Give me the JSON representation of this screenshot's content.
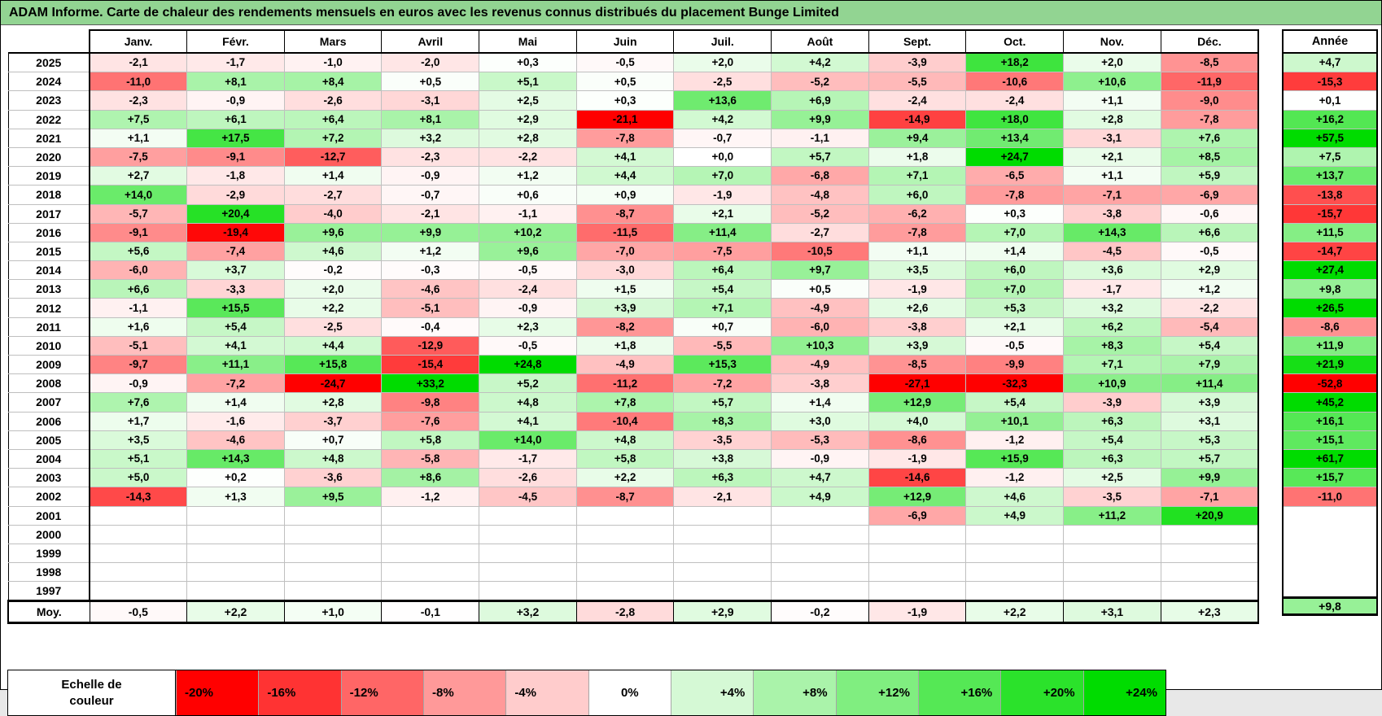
{
  "title": "ADAM Informe. Carte de chaleur des rendements mensuels en euros avec les revenus connus distribués du placement Bunge Limited",
  "colors": {
    "title_bg": "#92D492",
    "grid_line": "#BFBFBF",
    "border": "#000000"
  },
  "color_scale": {
    "negative_limit_pct": -20,
    "positive_limit_pct": 24,
    "negative_color": "#FF0000",
    "neutral_color": "#FFFFFF",
    "positive_color": "#00DC00"
  },
  "table": {
    "month_headers": [
      "Janv.",
      "Févr.",
      "Mars",
      "Avril",
      "Mai",
      "Juin",
      "Juil.",
      "Août",
      "Sept.",
      "Oct.",
      "Nov.",
      "Déc."
    ],
    "annual_header": "Année",
    "avg_label": "Moy.",
    "rows": [
      {
        "year": "2025",
        "months": [
          "-2,1",
          "-1,7",
          "-1,0",
          "-2,0",
          "+0,3",
          "-0,5",
          "+2,0",
          "+4,2",
          "-3,9",
          "+18,2",
          "+2,0",
          "-8,5"
        ],
        "annee": "+4,7"
      },
      {
        "year": "2024",
        "months": [
          "-11,0",
          "+8,1",
          "+8,4",
          "+0,5",
          "+5,1",
          "+0,5",
          "-2,5",
          "-5,2",
          "-5,5",
          "-10,6",
          "+10,6",
          "-11,9"
        ],
        "annee": "-15,3"
      },
      {
        "year": "2023",
        "months": [
          "-2,3",
          "-0,9",
          "-2,6",
          "-3,1",
          "+2,5",
          "+0,3",
          "+13,6",
          "+6,9",
          "-2,4",
          "-2,4",
          "+1,1",
          "-9,0"
        ],
        "annee": "+0,1"
      },
      {
        "year": "2022",
        "months": [
          "+7,5",
          "+6,1",
          "+6,4",
          "+8,1",
          "+2,9",
          "-21,1",
          "+4,2",
          "+9,9",
          "-14,9",
          "+18,0",
          "+2,8",
          "-7,8"
        ],
        "annee": "+16,2"
      },
      {
        "year": "2021",
        "months": [
          "+1,1",
          "+17,5",
          "+7,2",
          "+3,2",
          "+2,8",
          "-7,8",
          "-0,7",
          "-1,1",
          "+9,4",
          "+13,4",
          "-3,1",
          "+7,6"
        ],
        "annee": "+57,5"
      },
      {
        "year": "2020",
        "months": [
          "-7,5",
          "-9,1",
          "-12,7",
          "-2,3",
          "-2,2",
          "+4,1",
          "+0,0",
          "+5,7",
          "+1,8",
          "+24,7",
          "+2,1",
          "+8,5"
        ],
        "annee": "+7,5"
      },
      {
        "year": "2019",
        "months": [
          "+2,7",
          "-1,8",
          "+1,4",
          "-0,9",
          "+1,2",
          "+4,4",
          "+7,0",
          "-6,8",
          "+7,1",
          "-6,5",
          "+1,1",
          "+5,9"
        ],
        "annee": "+13,7"
      },
      {
        "year": "2018",
        "months": [
          "+14,0",
          "-2,9",
          "-2,7",
          "-0,7",
          "+0,6",
          "+0,9",
          "-1,9",
          "-4,8",
          "+6,0",
          "-7,8",
          "-7,1",
          "-6,9"
        ],
        "annee": "-13,8"
      },
      {
        "year": "2017",
        "months": [
          "-5,7",
          "+20,4",
          "-4,0",
          "-2,1",
          "-1,1",
          "-8,7",
          "+2,1",
          "-5,2",
          "-6,2",
          "+0,3",
          "-3,8",
          "-0,6"
        ],
        "annee": "-15,7"
      },
      {
        "year": "2016",
        "months": [
          "-9,1",
          "-19,4",
          "+9,6",
          "+9,9",
          "+10,2",
          "-11,5",
          "+11,4",
          "-2,7",
          "-7,8",
          "+7,0",
          "+14,3",
          "+6,6"
        ],
        "annee": "+11,5"
      },
      {
        "year": "2015",
        "months": [
          "+5,6",
          "-7,4",
          "+4,6",
          "+1,2",
          "+9,6",
          "-7,0",
          "-7,5",
          "-10,5",
          "+1,1",
          "+1,4",
          "-4,5",
          "-0,5"
        ],
        "annee": "-14,7"
      },
      {
        "year": "2014",
        "months": [
          "-6,0",
          "+3,7",
          "-0,2",
          "-0,3",
          "-0,5",
          "-3,0",
          "+6,4",
          "+9,7",
          "+3,5",
          "+6,0",
          "+3,6",
          "+2,9"
        ],
        "annee": "+27,4"
      },
      {
        "year": "2013",
        "months": [
          "+6,6",
          "-3,3",
          "+2,0",
          "-4,6",
          "-2,4",
          "+1,5",
          "+5,4",
          "+0,5",
          "-1,9",
          "+7,0",
          "-1,7",
          "+1,2"
        ],
        "annee": "+9,8"
      },
      {
        "year": "2012",
        "months": [
          "-1,1",
          "+15,5",
          "+2,2",
          "-5,1",
          "-0,9",
          "+3,9",
          "+7,1",
          "-4,9",
          "+2,6",
          "+5,3",
          "+3,2",
          "-2,2"
        ],
        "annee": "+26,5"
      },
      {
        "year": "2011",
        "months": [
          "+1,6",
          "+5,4",
          "-2,5",
          "-0,4",
          "+2,3",
          "-8,2",
          "+0,7",
          "-6,0",
          "-3,8",
          "+2,1",
          "+6,2",
          "-5,4"
        ],
        "annee": "-8,6"
      },
      {
        "year": "2010",
        "months": [
          "-5,1",
          "+4,1",
          "+4,4",
          "-12,9",
          "-0,5",
          "+1,8",
          "-5,5",
          "+10,3",
          "+3,9",
          "-0,5",
          "+8,3",
          "+5,4"
        ],
        "annee": "+11,9"
      },
      {
        "year": "2009",
        "months": [
          "-9,7",
          "+11,1",
          "+15,8",
          "-15,4",
          "+24,8",
          "-4,9",
          "+15,3",
          "-4,9",
          "-8,5",
          "-9,9",
          "+7,1",
          "+7,9"
        ],
        "annee": "+21,9"
      },
      {
        "year": "2008",
        "months": [
          "-0,9",
          "-7,2",
          "-24,7",
          "+33,2",
          "+5,2",
          "-11,2",
          "-7,2",
          "-3,8",
          "-27,1",
          "-32,3",
          "+10,9",
          "+11,4"
        ],
        "annee": "-52,8"
      },
      {
        "year": "2007",
        "months": [
          "+7,6",
          "+1,4",
          "+2,8",
          "-9,8",
          "+4,8",
          "+7,8",
          "+5,7",
          "+1,4",
          "+12,9",
          "+5,4",
          "-3,9",
          "+3,9"
        ],
        "annee": "+45,2"
      },
      {
        "year": "2006",
        "months": [
          "+1,7",
          "-1,6",
          "-3,7",
          "-7,6",
          "+4,1",
          "-10,4",
          "+8,3",
          "+3,0",
          "+4,0",
          "+10,1",
          "+6,3",
          "+3,1"
        ],
        "annee": "+16,1"
      },
      {
        "year": "2005",
        "months": [
          "+3,5",
          "-4,6",
          "+0,7",
          "+5,8",
          "+14,0",
          "+4,8",
          "-3,5",
          "-5,3",
          "-8,6",
          "-1,2",
          "+5,4",
          "+5,3"
        ],
        "annee": "+15,1"
      },
      {
        "year": "2004",
        "months": [
          "+5,1",
          "+14,3",
          "+4,8",
          "-5,8",
          "-1,7",
          "+5,8",
          "+3,8",
          "-0,9",
          "-1,9",
          "+15,9",
          "+6,3",
          "+5,7"
        ],
        "annee": "+61,7"
      },
      {
        "year": "2003",
        "months": [
          "+5,0",
          "+0,2",
          "-3,6",
          "+8,6",
          "-2,6",
          "+2,2",
          "+6,3",
          "+4,7",
          "-14,6",
          "-1,2",
          "+2,5",
          "+9,9"
        ],
        "annee": "+15,7"
      },
      {
        "year": "2002",
        "months": [
          "-14,3",
          "+1,3",
          "+9,5",
          "-1,2",
          "-4,5",
          "-8,7",
          "-2,1",
          "+4,9",
          "+12,9",
          "+4,6",
          "-3,5",
          "-7,1"
        ],
        "annee": "-11,0"
      },
      {
        "year": "2001",
        "months": [
          "",
          "",
          "",
          "",
          "",
          "",
          "",
          "",
          "-6,9",
          "+4,9",
          "+11,2",
          "+20,9"
        ],
        "annee": ""
      },
      {
        "year": "2000",
        "months": [
          "",
          "",
          "",
          "",
          "",
          "",
          "",
          "",
          "",
          "",
          "",
          ""
        ],
        "annee": ""
      },
      {
        "year": "1999",
        "months": [
          "",
          "",
          "",
          "",
          "",
          "",
          "",
          "",
          "",
          "",
          "",
          ""
        ],
        "annee": ""
      },
      {
        "year": "1998",
        "months": [
          "",
          "",
          "",
          "",
          "",
          "",
          "",
          "",
          "",
          "",
          "",
          ""
        ],
        "annee": ""
      },
      {
        "year": "1997",
        "months": [
          "",
          "",
          "",
          "",
          "",
          "",
          "",
          "",
          "",
          "",
          "",
          ""
        ],
        "annee": ""
      }
    ],
    "avg_row": {
      "months": [
        "-0,5",
        "+2,2",
        "+1,0",
        "-0,1",
        "+3,2",
        "-2,8",
        "+2,9",
        "-0,2",
        "-1,9",
        "+2,2",
        "+3,1",
        "+2,3"
      ],
      "annee": "+9,8"
    }
  },
  "legend": {
    "label": "Echelle de couleur",
    "stops": [
      "-20%",
      "-16%",
      "-12%",
      "-8%",
      "-4%",
      "0%",
      "+4%",
      "+8%",
      "+12%",
      "+16%",
      "+20%",
      "+24%"
    ]
  },
  "chart_data": {
    "type": "heatmap",
    "title": "ADAM Informe. Carte de chaleur des rendements mensuels en euros avec les revenus connus distribués du placement Bunge Limited",
    "unit": "%",
    "x_labels": [
      "Janv.",
      "Févr.",
      "Mars",
      "Avril",
      "Mai",
      "Juin",
      "Juil.",
      "Août",
      "Sept.",
      "Oct.",
      "Nov.",
      "Déc."
    ],
    "annual_column_label": "Année",
    "rows": [
      {
        "year": 2025,
        "values": [
          -2.1,
          -1.7,
          -1.0,
          -2.0,
          0.3,
          -0.5,
          2.0,
          4.2,
          -3.9,
          18.2,
          2.0,
          -8.5
        ],
        "annual": 4.7
      },
      {
        "year": 2024,
        "values": [
          -11.0,
          8.1,
          8.4,
          0.5,
          5.1,
          0.5,
          -2.5,
          -5.2,
          -5.5,
          -10.6,
          10.6,
          -11.9
        ],
        "annual": -15.3
      },
      {
        "year": 2023,
        "values": [
          -2.3,
          -0.9,
          -2.6,
          -3.1,
          2.5,
          0.3,
          13.6,
          6.9,
          -2.4,
          -2.4,
          1.1,
          -9.0
        ],
        "annual": 0.1
      },
      {
        "year": 2022,
        "values": [
          7.5,
          6.1,
          6.4,
          8.1,
          2.9,
          -21.1,
          4.2,
          9.9,
          -14.9,
          18.0,
          2.8,
          -7.8
        ],
        "annual": 16.2
      },
      {
        "year": 2021,
        "values": [
          1.1,
          17.5,
          7.2,
          3.2,
          2.8,
          -7.8,
          -0.7,
          -1.1,
          9.4,
          13.4,
          -3.1,
          7.6
        ],
        "annual": 57.5
      },
      {
        "year": 2020,
        "values": [
          -7.5,
          -9.1,
          -12.7,
          -2.3,
          -2.2,
          4.1,
          0.0,
          5.7,
          1.8,
          24.7,
          2.1,
          8.5
        ],
        "annual": 7.5
      },
      {
        "year": 2019,
        "values": [
          2.7,
          -1.8,
          1.4,
          -0.9,
          1.2,
          4.4,
          7.0,
          -6.8,
          7.1,
          -6.5,
          1.1,
          5.9
        ],
        "annual": 13.7
      },
      {
        "year": 2018,
        "values": [
          14.0,
          -2.9,
          -2.7,
          -0.7,
          0.6,
          0.9,
          -1.9,
          -4.8,
          6.0,
          -7.8,
          -7.1,
          -6.9
        ],
        "annual": -13.8
      },
      {
        "year": 2017,
        "values": [
          -5.7,
          20.4,
          -4.0,
          -2.1,
          -1.1,
          -8.7,
          2.1,
          -5.2,
          -6.2,
          0.3,
          -3.8,
          -0.6
        ],
        "annual": -15.7
      },
      {
        "year": 2016,
        "values": [
          -9.1,
          -19.4,
          9.6,
          9.9,
          10.2,
          -11.5,
          11.4,
          -2.7,
          -7.8,
          7.0,
          14.3,
          6.6
        ],
        "annual": 11.5
      },
      {
        "year": 2015,
        "values": [
          5.6,
          -7.4,
          4.6,
          1.2,
          9.6,
          -7.0,
          -7.5,
          -10.5,
          1.1,
          1.4,
          -4.5,
          -0.5
        ],
        "annual": -14.7
      },
      {
        "year": 2014,
        "values": [
          -6.0,
          3.7,
          -0.2,
          -0.3,
          -0.5,
          -3.0,
          6.4,
          9.7,
          3.5,
          6.0,
          3.6,
          2.9
        ],
        "annual": 27.4
      },
      {
        "year": 2013,
        "values": [
          6.6,
          -3.3,
          2.0,
          -4.6,
          -2.4,
          1.5,
          5.4,
          0.5,
          -1.9,
          7.0,
          -1.7,
          1.2
        ],
        "annual": 9.8
      },
      {
        "year": 2012,
        "values": [
          -1.1,
          15.5,
          2.2,
          -5.1,
          -0.9,
          3.9,
          7.1,
          -4.9,
          2.6,
          5.3,
          3.2,
          -2.2
        ],
        "annual": 26.5
      },
      {
        "year": 2011,
        "values": [
          1.6,
          5.4,
          -2.5,
          -0.4,
          2.3,
          -8.2,
          0.7,
          -6.0,
          -3.8,
          2.1,
          6.2,
          -5.4
        ],
        "annual": -8.6
      },
      {
        "year": 2010,
        "values": [
          -5.1,
          4.1,
          4.4,
          -12.9,
          -0.5,
          1.8,
          -5.5,
          10.3,
          3.9,
          -0.5,
          8.3,
          5.4
        ],
        "annual": 11.9
      },
      {
        "year": 2009,
        "values": [
          -9.7,
          11.1,
          15.8,
          -15.4,
          24.8,
          -4.9,
          15.3,
          -4.9,
          -8.5,
          -9.9,
          7.1,
          7.9
        ],
        "annual": 21.9
      },
      {
        "year": 2008,
        "values": [
          -0.9,
          -7.2,
          -24.7,
          33.2,
          5.2,
          -11.2,
          -7.2,
          -3.8,
          -27.1,
          -32.3,
          10.9,
          11.4
        ],
        "annual": -52.8
      },
      {
        "year": 2007,
        "values": [
          7.6,
          1.4,
          2.8,
          -9.8,
          4.8,
          7.8,
          5.7,
          1.4,
          12.9,
          5.4,
          -3.9,
          3.9
        ],
        "annual": 45.2
      },
      {
        "year": 2006,
        "values": [
          1.7,
          -1.6,
          -3.7,
          -7.6,
          4.1,
          -10.4,
          8.3,
          3.0,
          4.0,
          10.1,
          6.3,
          3.1
        ],
        "annual": 16.1
      },
      {
        "year": 2005,
        "values": [
          3.5,
          -4.6,
          0.7,
          5.8,
          14.0,
          4.8,
          -3.5,
          -5.3,
          -8.6,
          -1.2,
          5.4,
          5.3
        ],
        "annual": 15.1
      },
      {
        "year": 2004,
        "values": [
          5.1,
          14.3,
          4.8,
          -5.8,
          -1.7,
          5.8,
          3.8,
          -0.9,
          -1.9,
          15.9,
          6.3,
          5.7
        ],
        "annual": 61.7
      },
      {
        "year": 2003,
        "values": [
          5.0,
          0.2,
          -3.6,
          8.6,
          -2.6,
          2.2,
          6.3,
          4.7,
          -14.6,
          -1.2,
          2.5,
          9.9
        ],
        "annual": 15.7
      },
      {
        "year": 2002,
        "values": [
          -14.3,
          1.3,
          9.5,
          -1.2,
          -4.5,
          -8.7,
          -2.1,
          4.9,
          12.9,
          4.6,
          -3.5,
          -7.1
        ],
        "annual": -11.0
      },
      {
        "year": 2001,
        "values": [
          null,
          null,
          null,
          null,
          null,
          null,
          null,
          null,
          -6.9,
          4.9,
          11.2,
          20.9
        ],
        "annual": null
      },
      {
        "year": 2000,
        "values": [
          null,
          null,
          null,
          null,
          null,
          null,
          null,
          null,
          null,
          null,
          null,
          null
        ],
        "annual": null
      },
      {
        "year": 1999,
        "values": [
          null,
          null,
          null,
          null,
          null,
          null,
          null,
          null,
          null,
          null,
          null,
          null
        ],
        "annual": null
      },
      {
        "year": 1998,
        "values": [
          null,
          null,
          null,
          null,
          null,
          null,
          null,
          null,
          null,
          null,
          null,
          null
        ],
        "annual": null
      },
      {
        "year": 1997,
        "values": [
          null,
          null,
          null,
          null,
          null,
          null,
          null,
          null,
          null,
          null,
          null,
          null
        ],
        "annual": null
      }
    ],
    "average_row": {
      "label": "Moy.",
      "values": [
        -0.5,
        2.2,
        1.0,
        -0.1,
        3.2,
        -2.8,
        2.9,
        -0.2,
        -1.9,
        2.2,
        3.1,
        2.3
      ],
      "annual": 9.8
    },
    "color_scale_stops_pct": [
      -20,
      -16,
      -12,
      -8,
      -4,
      0,
      4,
      8,
      12,
      16,
      20,
      24
    ],
    "layout": {
      "grid": true,
      "legend_position": "bottom"
    }
  }
}
